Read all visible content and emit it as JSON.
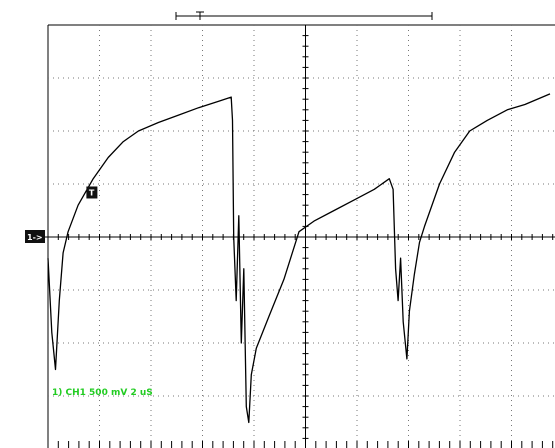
{
  "chart_data": {
    "type": "line",
    "title": "",
    "xlabel": "",
    "ylabel": "",
    "channel_readout": "1) CH1  500 mV   2 uS",
    "channel_marker": "1->",
    "trigger_marker": "T",
    "grid": true,
    "x_unit": "us",
    "y_unit": "V",
    "volts_per_div": 0.5,
    "time_per_div_us": 2,
    "xlim": [
      0,
      20.2
    ],
    "ylim": [
      -2,
      2
    ],
    "trace_color": "#000000",
    "readout_color": "#22cc22",
    "series": [
      {
        "name": "",
        "points": [
          [
            0,
            -0.2
          ],
          [
            0.15,
            -0.9
          ],
          [
            0.3,
            -1.25
          ],
          [
            0.45,
            -0.6
          ],
          [
            0.6,
            -0.15
          ],
          [
            0.8,
            0.05
          ],
          [
            1.2,
            0.3
          ],
          [
            1.8,
            0.55
          ],
          [
            2.4,
            0.75
          ],
          [
            3.0,
            0.9
          ],
          [
            3.6,
            1.0
          ],
          [
            4.4,
            1.08
          ],
          [
            5.2,
            1.15
          ],
          [
            6.0,
            1.22
          ],
          [
            6.8,
            1.28
          ],
          [
            7.3,
            1.32
          ],
          [
            7.35,
            1.1
          ],
          [
            7.4,
            0.0
          ],
          [
            7.5,
            -0.6
          ],
          [
            7.6,
            0.2
          ],
          [
            7.7,
            -1.0
          ],
          [
            7.8,
            -0.3
          ],
          [
            7.9,
            -1.6
          ],
          [
            8.0,
            -1.75
          ],
          [
            8.1,
            -1.3
          ],
          [
            8.3,
            -1.05
          ],
          [
            8.8,
            -0.75
          ],
          [
            9.4,
            -0.4
          ],
          [
            10.0,
            0.05
          ],
          [
            10.6,
            0.15
          ],
          [
            11.4,
            0.25
          ],
          [
            12.2,
            0.35
          ],
          [
            13.0,
            0.45
          ],
          [
            13.6,
            0.55
          ],
          [
            13.75,
            0.45
          ],
          [
            13.85,
            -0.3
          ],
          [
            13.95,
            -0.6
          ],
          [
            14.05,
            -0.2
          ],
          [
            14.15,
            -0.8
          ],
          [
            14.3,
            -1.15
          ],
          [
            14.4,
            -0.7
          ],
          [
            14.6,
            -0.35
          ],
          [
            14.8,
            -0.05
          ],
          [
            15.0,
            0.1
          ],
          [
            15.6,
            0.5
          ],
          [
            16.2,
            0.8
          ],
          [
            16.8,
            1.0
          ],
          [
            17.5,
            1.1
          ],
          [
            18.3,
            1.2
          ],
          [
            19.0,
            1.25
          ],
          [
            20.0,
            1.35
          ]
        ]
      }
    ]
  }
}
